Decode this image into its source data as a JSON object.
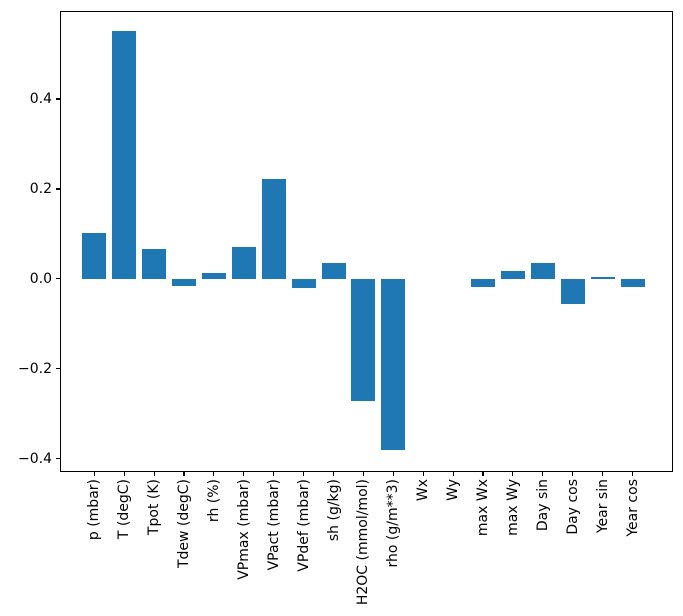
{
  "figure": {
    "background": "#ffffff",
    "spine_color": "#000000",
    "text_color": "#000000"
  },
  "chart_data": {
    "type": "bar",
    "title": "",
    "xlabel": "",
    "ylabel": "",
    "categories": [
      "p (mbar)",
      "T (degC)",
      "Tpot (K)",
      "Tdew (degC)",
      "rh (%)",
      "VPmax (mbar)",
      "VPact (mbar)",
      "VPdef (mbar)",
      "sh (g/kg)",
      "H2OC (mmol/mol)",
      "rho (g/m**3)",
      "Wx",
      "Wy",
      "max Wx",
      "max Wy",
      "Day sin",
      "Day cos",
      "Year sin",
      "Year cos"
    ],
    "values": [
      0.101,
      0.552,
      0.067,
      -0.015,
      0.014,
      0.071,
      0.222,
      -0.02,
      0.036,
      -0.273,
      -0.38,
      0.0,
      0.0,
      -0.019,
      0.017,
      0.036,
      -0.057,
      0.004,
      -0.019
    ],
    "bar_color": "#1f77b4",
    "ylim": [
      -0.43,
      0.596
    ],
    "yticks": {
      "values": [
        0.4,
        0.2,
        0.0,
        -0.2,
        -0.4
      ],
      "labels": [
        "0.4",
        "0.2",
        "0.0",
        "−0.2",
        "−0.4"
      ]
    },
    "x_tick_rotation": 90,
    "grid": false,
    "legend": "none"
  }
}
